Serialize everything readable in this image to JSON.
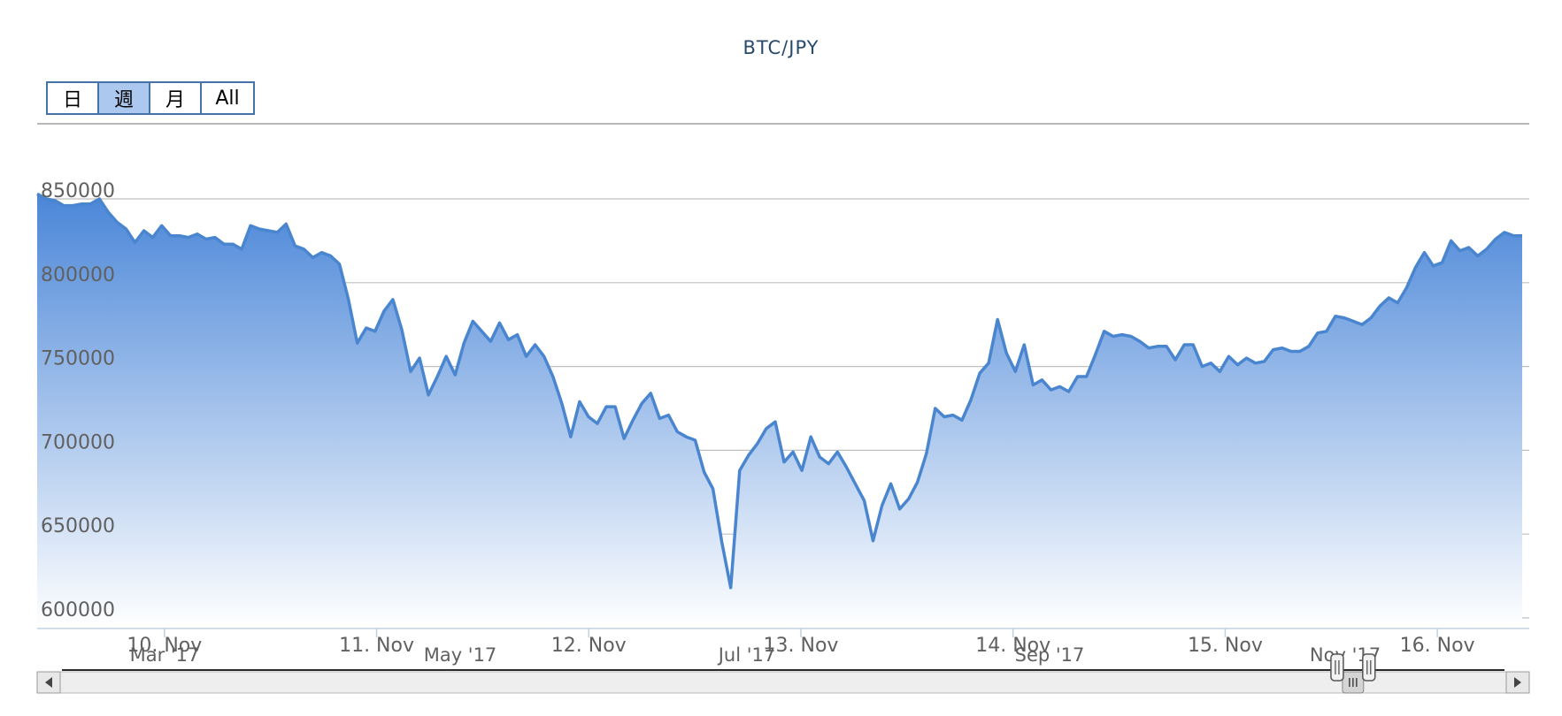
{
  "title": "BTC/JPY",
  "range_selector": {
    "buttons": [
      "日",
      "週",
      "月",
      "All"
    ],
    "selected": "週"
  },
  "colors": {
    "line": "#4a86cf",
    "area_top": "#4a86d8",
    "area_bottom": "#ffffff",
    "grid": "#c0c0c0",
    "button_active": "#acc8ee",
    "button_border": "#4572a7"
  },
  "chart_data": {
    "type": "area",
    "title": "BTC/JPY",
    "xlabel": "",
    "ylabel": "",
    "ylim": [
      590000,
      880000
    ],
    "y_ticks": [
      600000,
      650000,
      700000,
      750000,
      800000,
      850000
    ],
    "y_tick_labels": [
      "600000",
      "650000",
      "700000",
      "750000",
      "800000",
      "850000"
    ],
    "x_tick_labels": [
      "10. Nov",
      "11. Nov",
      "12. Nov",
      "13. Nov",
      "14. Nov",
      "15. Nov",
      "16. Nov"
    ],
    "x_tick_values": [
      9.6,
      10.6,
      11.6,
      12.6,
      13.6,
      14.6,
      15.6
    ],
    "xlim": [
      9.0,
      16.0
    ],
    "grid": true,
    "legend": "none",
    "series": [
      {
        "values": [
          853000,
          850000,
          849000,
          846000,
          846000,
          847000,
          847000,
          850000,
          842000,
          836000,
          832000,
          824000,
          831000,
          827000,
          834000,
          828000,
          828000,
          827000,
          829000,
          826000,
          827000,
          823000,
          823000,
          820000,
          834000,
          832000,
          831000,
          830000,
          835000,
          822000,
          820000,
          815000,
          818000,
          816000,
          811000,
          790000,
          764000,
          773000,
          771000,
          783000,
          790000,
          772000,
          747000,
          755000,
          733000,
          744000,
          756000,
          745000,
          764000,
          777000,
          771000,
          765000,
          776000,
          766000,
          769000,
          756000,
          763000,
          756000,
          744000,
          728000,
          708000,
          729000,
          720000,
          716000,
          726000,
          726000,
          707000,
          718000,
          728000,
          734000,
          719000,
          721000,
          711000,
          708000,
          706000,
          687000,
          677000,
          645000,
          618000,
          688000,
          697000,
          704000,
          713000,
          717000,
          693000,
          699000,
          688000,
          708000,
          696000,
          692000,
          699000,
          690000,
          680000,
          670000,
          646000,
          667000,
          680000,
          665000,
          671000,
          681000,
          698000,
          725000,
          720000,
          721000,
          718000,
          730000,
          746000,
          752000,
          778000,
          758000,
          747000,
          763000,
          739000,
          742000,
          736000,
          738000,
          735000,
          744000,
          744000,
          757000,
          771000,
          768000,
          769000,
          768000,
          765000,
          761000,
          762000,
          762000,
          754000,
          763000,
          763000,
          750000,
          752000,
          747000,
          756000,
          751000,
          755000,
          752000,
          753000,
          760000,
          761000,
          759000,
          759000,
          762000,
          770000,
          771000,
          780000,
          779000,
          777000,
          775000,
          779000,
          786000,
          791000,
          788000,
          797000,
          809000,
          818000,
          810000,
          812000,
          825000,
          819000,
          821000,
          816000,
          820000,
          826000,
          830000,
          828000,
          828000
        ]
      }
    ]
  },
  "navigator": {
    "labels": [
      "Mar '17",
      "May '17",
      "Jul '17",
      "Sep '17",
      "Nov '17"
    ],
    "selected_fraction": [
      0.884,
      0.906
    ]
  }
}
